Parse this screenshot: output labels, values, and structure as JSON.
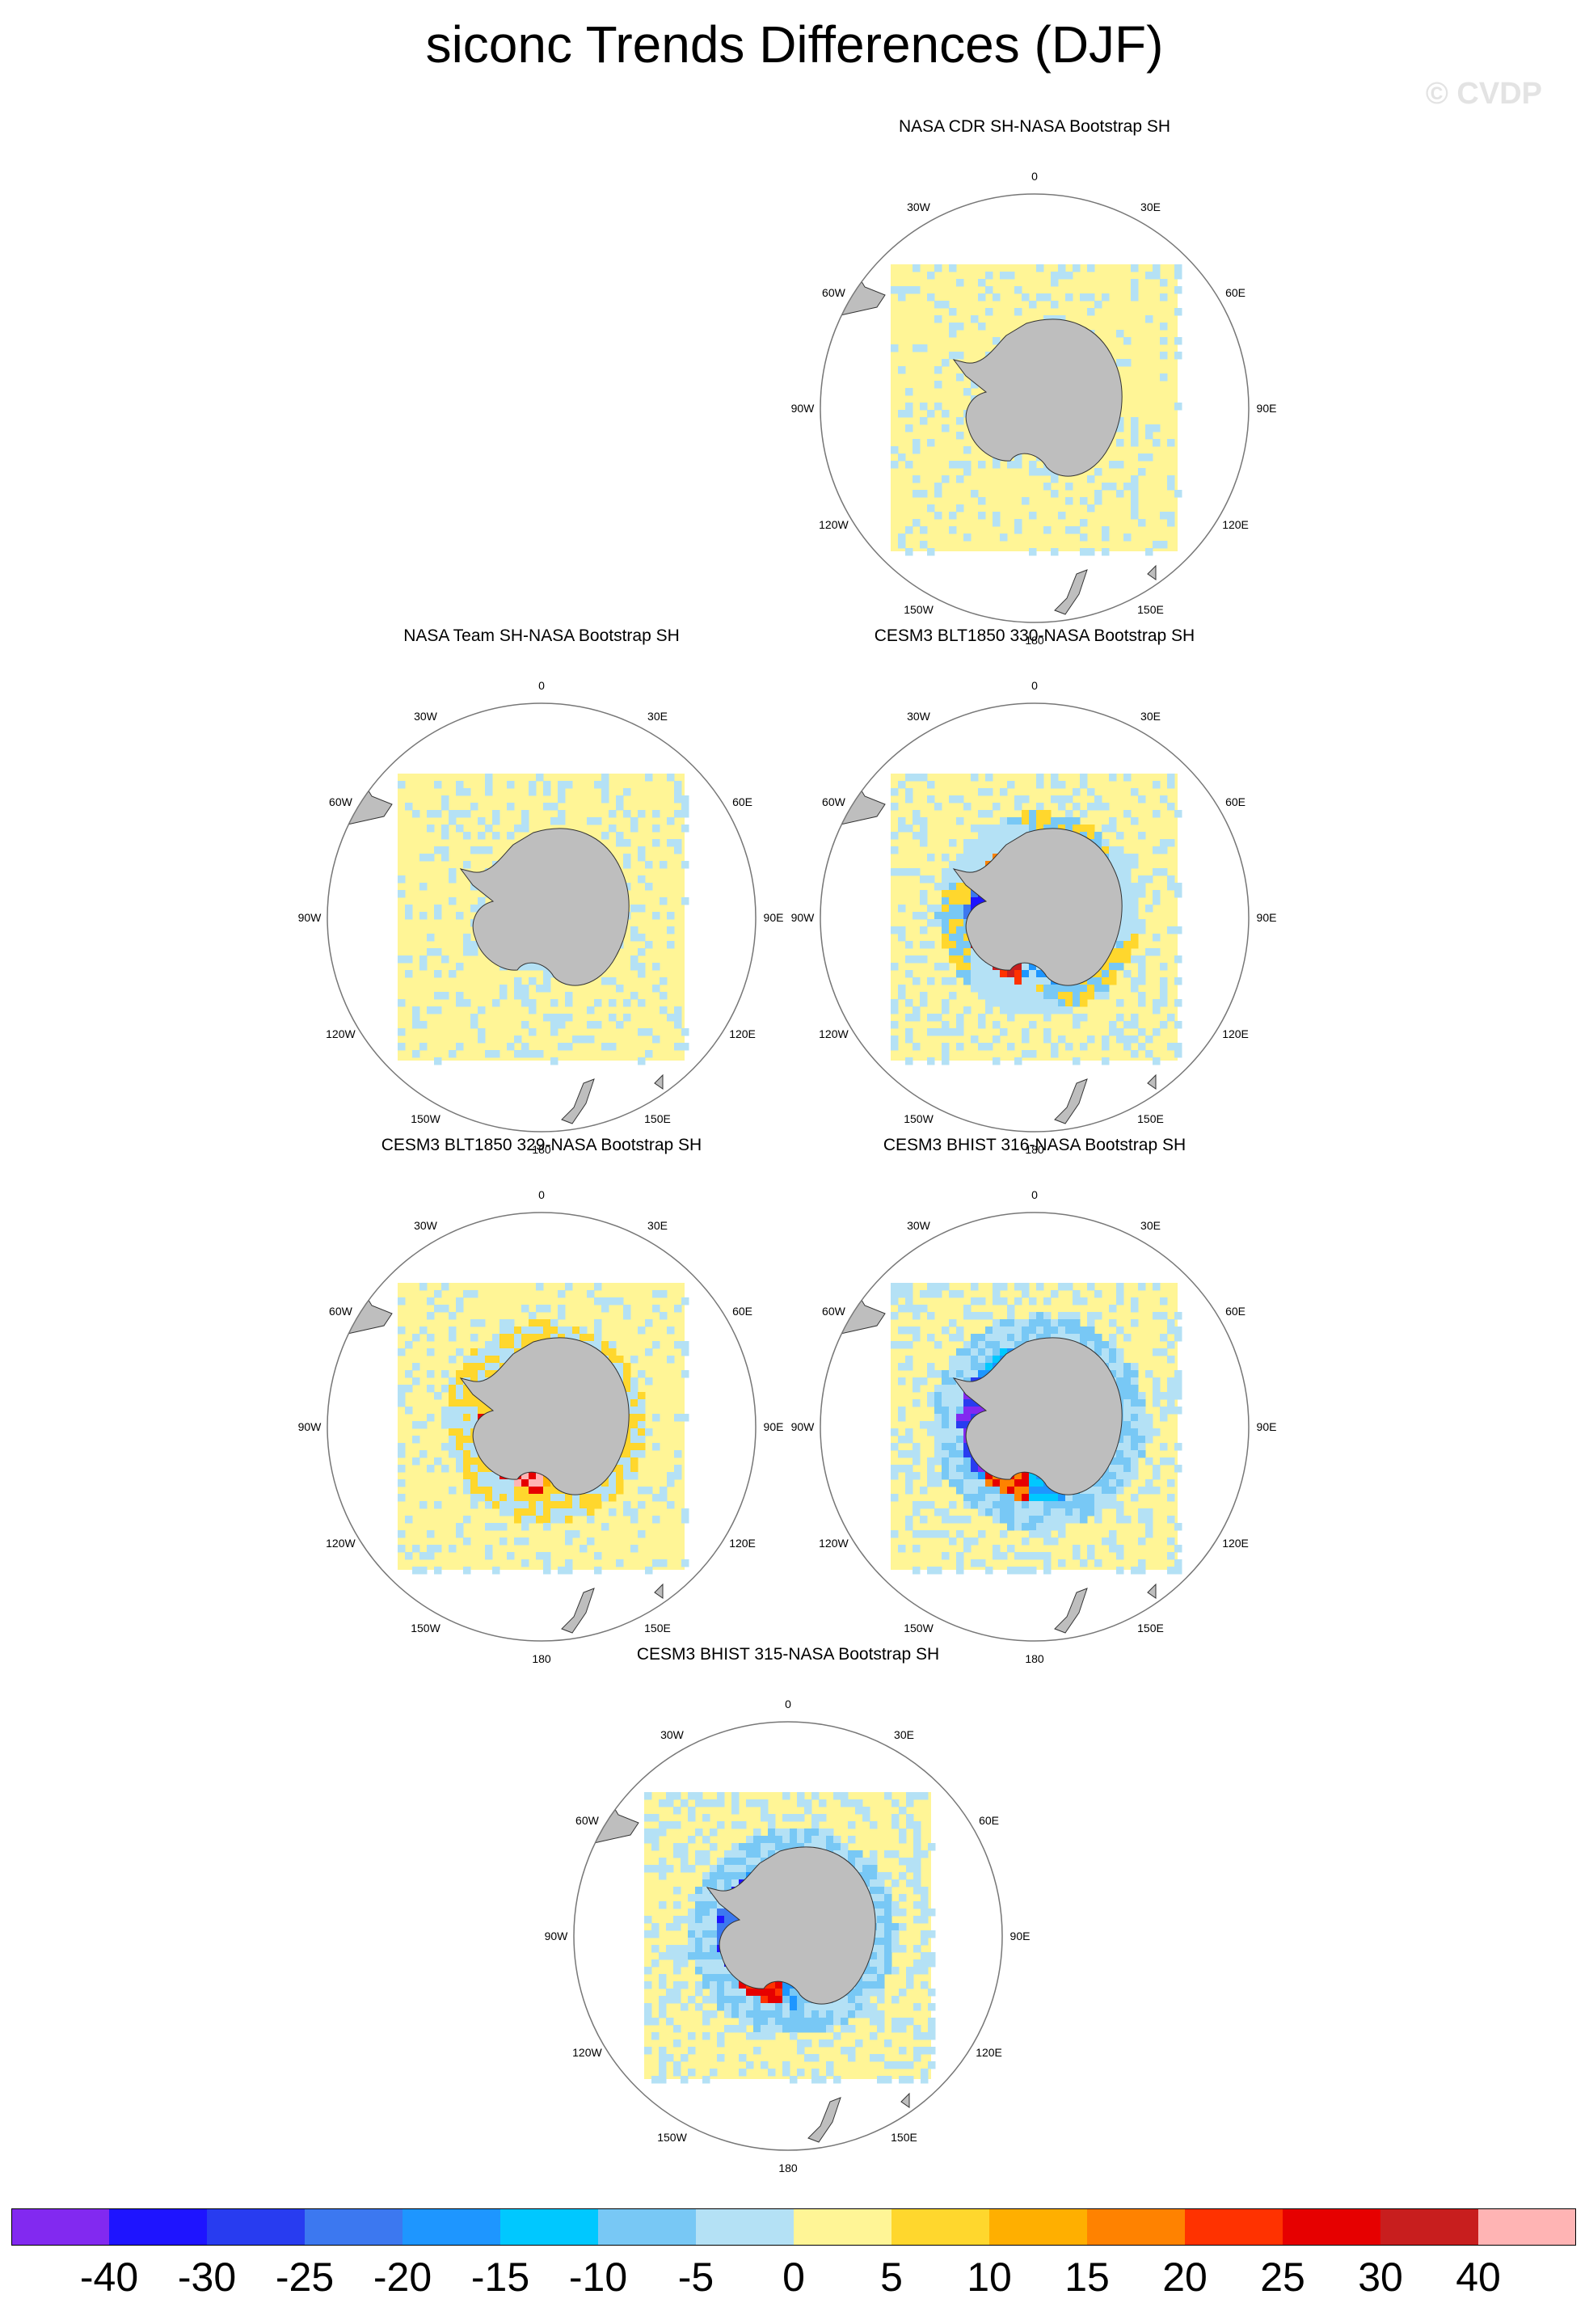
{
  "title": "siconc Trends Differences (DJF)",
  "watermark": "© CVDP",
  "lon_labels": [
    "0",
    "30E",
    "60E",
    "90E",
    "120E",
    "150E",
    "180",
    "150W",
    "120W",
    "90W",
    "60W",
    "30W"
  ],
  "panels": [
    {
      "title": "NASA CDR SH-NASA Bootstrap SH",
      "pattern": "faint",
      "seed": 11
    },
    {
      "title": "NASA Team SH-NASA Bootstrap SH",
      "pattern": "faint",
      "seed": 23
    },
    {
      "title": "CESM3 BLT1850 330-NASA Bootstrap SH",
      "pattern": "mixed",
      "seed": 37
    },
    {
      "title": "CESM3 BLT1850 329-NASA Bootstrap SH",
      "pattern": "warm",
      "seed": 41
    },
    {
      "title": "CESM3 BHIST 316-NASA Bootstrap SH",
      "pattern": "cool",
      "seed": 53
    },
    {
      "title": "CESM3 BHIST 315-NASA Bootstrap SH",
      "pattern": "coolmix",
      "seed": 67
    }
  ],
  "colorbar": {
    "labels": [
      "-40",
      "-30",
      "-25",
      "-20",
      "-15",
      "-10",
      "-5",
      "0",
      "5",
      "10",
      "15",
      "20",
      "25",
      "30",
      "40"
    ],
    "colors": [
      "#8229f0",
      "#1e14ff",
      "#283cf0",
      "#3c78f0",
      "#1e96ff",
      "#00c8ff",
      "#78c8f5",
      "#b4e1f5",
      "#fff596",
      "#ffd72d",
      "#ffaf00",
      "#ff8200",
      "#ff3200",
      "#e60000",
      "#c81e1e",
      "#ffb4b4"
    ]
  },
  "colors": {
    "land": "#bebebe",
    "background": "#ffffff",
    "frame": "#000000"
  }
}
